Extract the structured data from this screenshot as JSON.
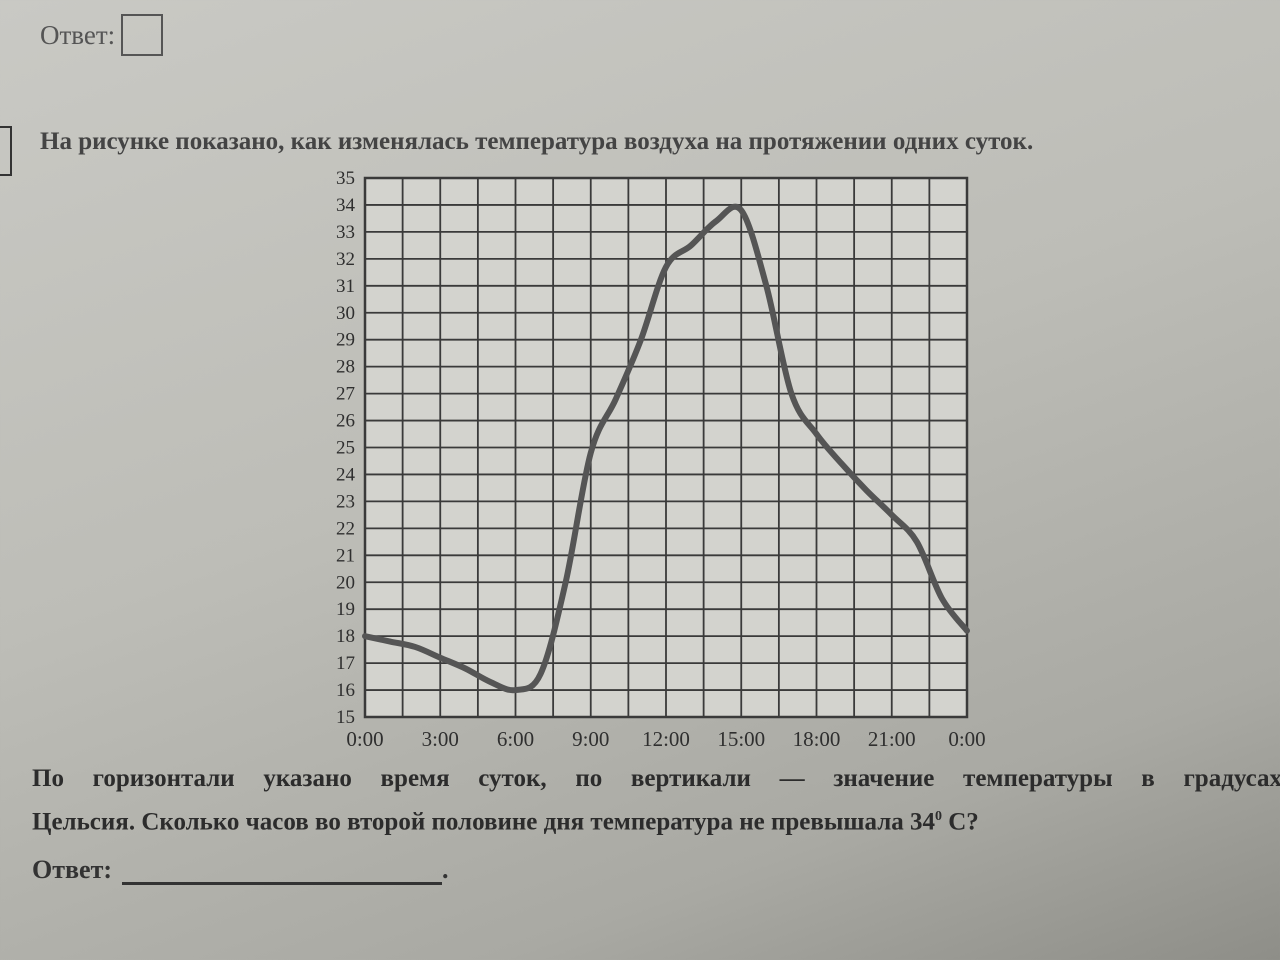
{
  "prev_task": {
    "answer_label": "Ответ:"
  },
  "task": {
    "intro": "На рисунке показано, как изменялась температура воздуха на протяжении одних суток.",
    "body_line1": "По горизонтали указано время суток, по вертикали — значение температуры в градусах",
    "body_line2_pre": "Цельсия. Сколько часов во второй половине дня температура не превышала 34",
    "body_sup": "0",
    "body_line2_post": " С?",
    "answer_label": "Ответ:",
    "answer_tail": "."
  },
  "chart_data": {
    "type": "line",
    "title": "",
    "xlabel": "",
    "ylabel": "",
    "x_ticks": [
      "0:00",
      "3:00",
      "6:00",
      "9:00",
      "12:00",
      "15:00",
      "18:00",
      "21:00",
      "0:00"
    ],
    "x_hours": [
      0,
      3,
      6,
      9,
      12,
      15,
      18,
      21,
      24
    ],
    "xlim": [
      0,
      24
    ],
    "ylim": [
      15,
      35
    ],
    "y_ticks": [
      15,
      16,
      17,
      18,
      19,
      20,
      21,
      22,
      23,
      24,
      25,
      26,
      27,
      28,
      29,
      30,
      31,
      32,
      33,
      34,
      35
    ],
    "grid": {
      "x_step_hours": 1.5,
      "y_step": 1
    },
    "series": [
      {
        "x_hours": [
          0,
          1,
          2,
          3,
          4,
          5,
          6,
          7,
          8,
          9,
          10,
          11,
          12,
          13,
          14,
          15,
          16,
          17,
          18,
          19,
          20,
          21,
          22,
          23,
          24
        ],
        "values": [
          18,
          17.8,
          17.6,
          17.2,
          16.8,
          16.3,
          16.0,
          16.6,
          20.0,
          24.8,
          26.8,
          29.0,
          31.7,
          32.5,
          33.4,
          33.8,
          31.0,
          27.0,
          25.5,
          24.4,
          23.4,
          22.5,
          21.5,
          19.4,
          18.2
        ],
        "color": "#555555"
      }
    ]
  }
}
